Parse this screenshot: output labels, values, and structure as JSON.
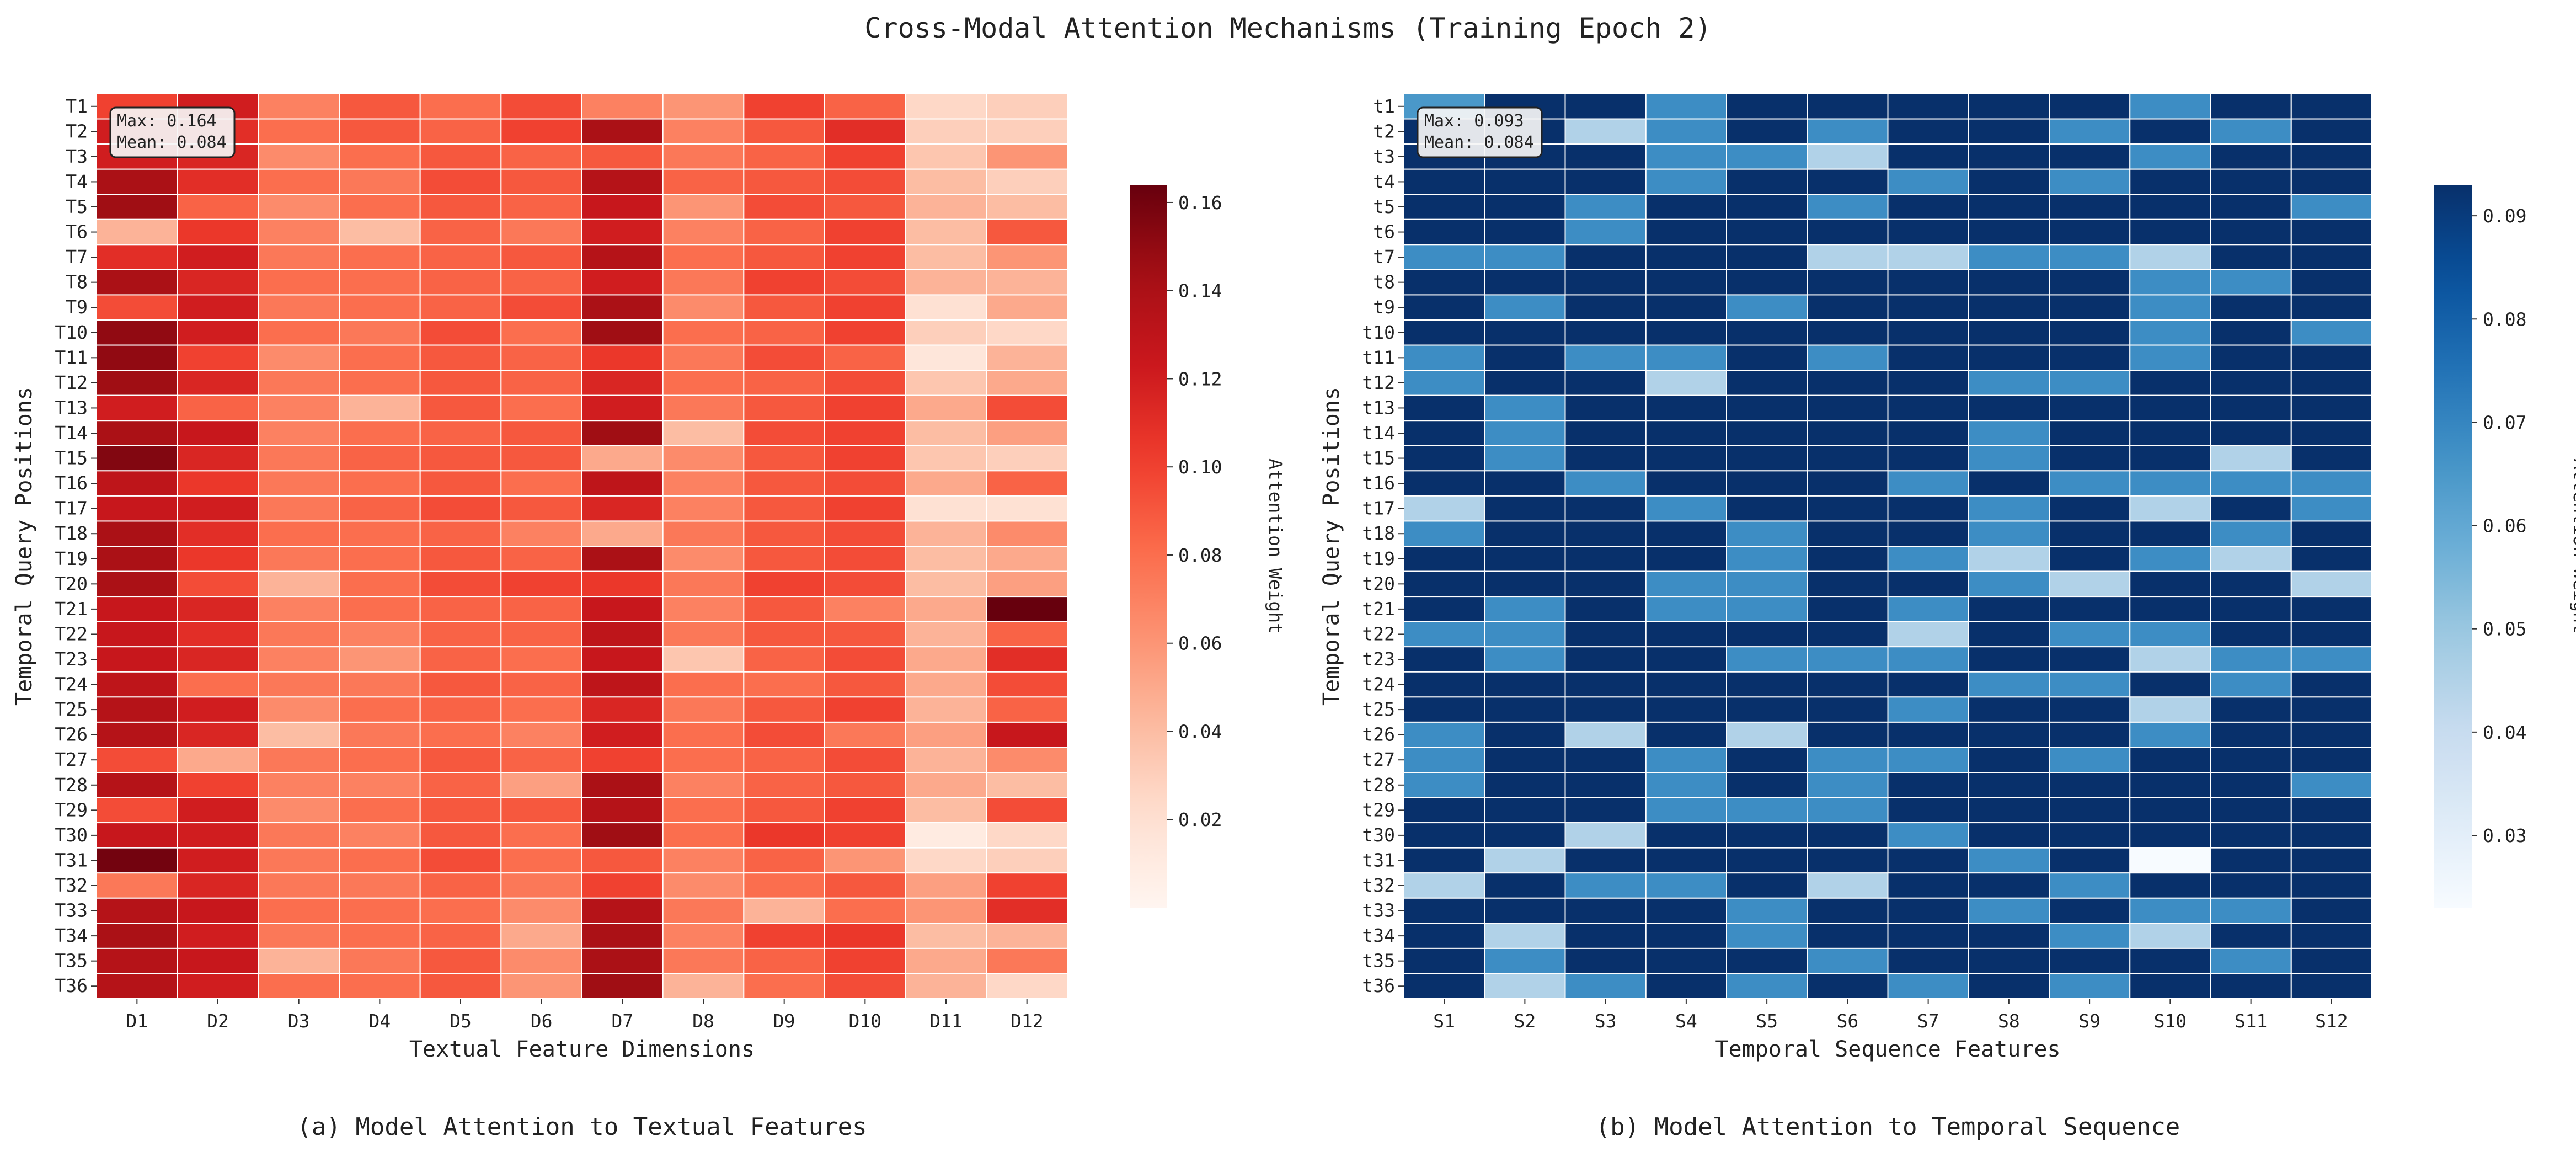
{
  "title": "Cross-Modal Attention Mechanisms (Training Epoch 2)",
  "chart_data": [
    {
      "type": "heatmap",
      "caption": "(a) Model Attention to Textual Features",
      "xlabel": "Textual Feature Dimensions",
      "ylabel": "Temporal Query Positions",
      "colorbar_label": "Attention Weight",
      "colormap": "Reds",
      "colorbar_ticks": [
        "0.02",
        "0.04",
        "0.06",
        "0.08",
        "0.10",
        "0.12",
        "0.14",
        "0.16"
      ],
      "vmin": 0.0,
      "vmax": 0.164,
      "stats": [
        "Max: 0.164",
        "Mean: 0.084"
      ],
      "x_labels": [
        "D1",
        "D2",
        "D3",
        "D4",
        "D5",
        "D6",
        "D7",
        "D8",
        "D9",
        "D10",
        "D11",
        "D12"
      ],
      "y_labels": [
        "T1",
        "T2",
        "T3",
        "T4",
        "T5",
        "T6",
        "T7",
        "T8",
        "T9",
        "T10",
        "T11",
        "T12",
        "T13",
        "T14",
        "T15",
        "T16",
        "T17",
        "T18",
        "T19",
        "T20",
        "T21",
        "T22",
        "T23",
        "T24",
        "T25",
        "T26",
        "T27",
        "T28",
        "T29",
        "T30",
        "T31",
        "T32",
        "T33",
        "T34",
        "T35",
        "T36"
      ],
      "values": [
        [
          0.1,
          0.12,
          0.07,
          0.09,
          0.08,
          0.095,
          0.07,
          0.06,
          0.1,
          0.085,
          0.025,
          0.03
        ],
        [
          0.12,
          0.11,
          0.08,
          0.09,
          0.085,
          0.1,
          0.14,
          0.07,
          0.09,
          0.11,
          0.03,
          0.03
        ],
        [
          0.12,
          0.115,
          0.065,
          0.08,
          0.09,
          0.085,
          0.09,
          0.075,
          0.085,
          0.1,
          0.035,
          0.06
        ],
        [
          0.14,
          0.11,
          0.08,
          0.075,
          0.095,
          0.09,
          0.135,
          0.085,
          0.09,
          0.095,
          0.04,
          0.03
        ],
        [
          0.145,
          0.085,
          0.065,
          0.08,
          0.09,
          0.085,
          0.125,
          0.06,
          0.095,
          0.09,
          0.045,
          0.04
        ],
        [
          0.045,
          0.105,
          0.07,
          0.04,
          0.085,
          0.075,
          0.12,
          0.07,
          0.085,
          0.1,
          0.04,
          0.09
        ],
        [
          0.11,
          0.12,
          0.075,
          0.08,
          0.085,
          0.09,
          0.135,
          0.08,
          0.09,
          0.1,
          0.04,
          0.06
        ],
        [
          0.14,
          0.115,
          0.08,
          0.08,
          0.085,
          0.085,
          0.12,
          0.075,
          0.1,
          0.095,
          0.045,
          0.045
        ],
        [
          0.095,
          0.12,
          0.075,
          0.08,
          0.085,
          0.095,
          0.14,
          0.065,
          0.09,
          0.1,
          0.02,
          0.05
        ],
        [
          0.15,
          0.12,
          0.08,
          0.075,
          0.095,
          0.08,
          0.145,
          0.08,
          0.085,
          0.1,
          0.03,
          0.025
        ],
        [
          0.15,
          0.1,
          0.065,
          0.08,
          0.09,
          0.085,
          0.105,
          0.075,
          0.095,
          0.085,
          0.015,
          0.045
        ],
        [
          0.145,
          0.115,
          0.075,
          0.08,
          0.09,
          0.085,
          0.115,
          0.08,
          0.085,
          0.095,
          0.035,
          0.05
        ],
        [
          0.12,
          0.085,
          0.07,
          0.045,
          0.09,
          0.08,
          0.12,
          0.075,
          0.09,
          0.1,
          0.05,
          0.095
        ],
        [
          0.14,
          0.125,
          0.07,
          0.08,
          0.085,
          0.09,
          0.145,
          0.04,
          0.095,
          0.1,
          0.04,
          0.055
        ],
        [
          0.155,
          0.115,
          0.075,
          0.085,
          0.09,
          0.09,
          0.05,
          0.065,
          0.09,
          0.1,
          0.035,
          0.03
        ],
        [
          0.13,
          0.105,
          0.075,
          0.08,
          0.09,
          0.08,
          0.13,
          0.07,
          0.09,
          0.095,
          0.05,
          0.085
        ],
        [
          0.125,
          0.12,
          0.075,
          0.085,
          0.095,
          0.09,
          0.115,
          0.07,
          0.09,
          0.1,
          0.02,
          0.02
        ],
        [
          0.14,
          0.11,
          0.08,
          0.08,
          0.085,
          0.07,
          0.05,
          0.075,
          0.09,
          0.095,
          0.045,
          0.065
        ],
        [
          0.14,
          0.105,
          0.075,
          0.08,
          0.09,
          0.085,
          0.14,
          0.065,
          0.09,
          0.095,
          0.04,
          0.05
        ],
        [
          0.14,
          0.095,
          0.045,
          0.08,
          0.095,
          0.1,
          0.105,
          0.075,
          0.1,
          0.095,
          0.04,
          0.055
        ],
        [
          0.125,
          0.115,
          0.07,
          0.08,
          0.085,
          0.085,
          0.125,
          0.07,
          0.09,
          0.07,
          0.05,
          0.164
        ],
        [
          0.125,
          0.11,
          0.075,
          0.07,
          0.085,
          0.085,
          0.13,
          0.075,
          0.09,
          0.09,
          0.045,
          0.085
        ],
        [
          0.125,
          0.115,
          0.07,
          0.06,
          0.085,
          0.08,
          0.125,
          0.035,
          0.085,
          0.095,
          0.05,
          0.11
        ],
        [
          0.13,
          0.08,
          0.075,
          0.075,
          0.09,
          0.085,
          0.13,
          0.08,
          0.08,
          0.09,
          0.05,
          0.095
        ],
        [
          0.135,
          0.12,
          0.065,
          0.08,
          0.085,
          0.08,
          0.115,
          0.075,
          0.09,
          0.1,
          0.045,
          0.085
        ],
        [
          0.135,
          0.115,
          0.04,
          0.075,
          0.08,
          0.07,
          0.12,
          0.08,
          0.095,
          0.075,
          0.055,
          0.125
        ],
        [
          0.095,
          0.05,
          0.075,
          0.08,
          0.09,
          0.085,
          0.1,
          0.08,
          0.085,
          0.095,
          0.045,
          0.065
        ],
        [
          0.135,
          0.1,
          0.07,
          0.07,
          0.085,
          0.055,
          0.14,
          0.07,
          0.085,
          0.09,
          0.05,
          0.04
        ],
        [
          0.095,
          0.12,
          0.065,
          0.08,
          0.09,
          0.09,
          0.135,
          0.08,
          0.09,
          0.1,
          0.04,
          0.095
        ],
        [
          0.125,
          0.12,
          0.075,
          0.07,
          0.09,
          0.08,
          0.145,
          0.08,
          0.105,
          0.1,
          0.01,
          0.025
        ],
        [
          0.16,
          0.12,
          0.075,
          0.08,
          0.095,
          0.08,
          0.09,
          0.07,
          0.085,
          0.06,
          0.025,
          0.03
        ],
        [
          0.075,
          0.115,
          0.075,
          0.075,
          0.085,
          0.075,
          0.1,
          0.065,
          0.08,
          0.09,
          0.055,
          0.1
        ],
        [
          0.135,
          0.125,
          0.08,
          0.08,
          0.08,
          0.065,
          0.135,
          0.075,
          0.045,
          0.08,
          0.06,
          0.11
        ],
        [
          0.14,
          0.12,
          0.075,
          0.08,
          0.085,
          0.05,
          0.14,
          0.07,
          0.1,
          0.105,
          0.04,
          0.045
        ],
        [
          0.135,
          0.125,
          0.045,
          0.075,
          0.09,
          0.065,
          0.14,
          0.075,
          0.085,
          0.1,
          0.05,
          0.075
        ],
        [
          0.135,
          0.12,
          0.08,
          0.08,
          0.09,
          0.06,
          0.145,
          0.045,
          0.08,
          0.095,
          0.045,
          0.025
        ]
      ]
    },
    {
      "type": "heatmap",
      "caption": "(b) Model Attention to Temporal Sequence",
      "xlabel": "Temporal Sequence Features",
      "ylabel": "Temporal Query Positions",
      "colorbar_label": "Attention Weight",
      "colormap": "Blues",
      "colorbar_ticks": [
        "0.03",
        "0.04",
        "0.05",
        "0.06",
        "0.07",
        "0.08",
        "0.09"
      ],
      "vmin": 0.023,
      "vmax": 0.093,
      "stats": [
        "Max: 0.093",
        "Mean: 0.084"
      ],
      "x_labels": [
        "S1",
        "S2",
        "S3",
        "S4",
        "S5",
        "S6",
        "S7",
        "S8",
        "S9",
        "S10",
        "S11",
        "S12"
      ],
      "y_labels": [
        "t1",
        "t2",
        "t3",
        "t4",
        "t5",
        "t6",
        "t7",
        "t8",
        "t9",
        "t10",
        "t11",
        "t12",
        "t13",
        "t14",
        "t15",
        "t16",
        "t17",
        "t18",
        "t19",
        "t20",
        "t21",
        "t22",
        "t23",
        "t24",
        "t25",
        "t26",
        "t27",
        "t28",
        "t29",
        "t30",
        "t31",
        "t32",
        "t33",
        "t34",
        "t35",
        "t36"
      ],
      "values": [
        [
          0.065,
          0.093,
          0.093,
          0.068,
          0.093,
          0.093,
          0.093,
          0.093,
          0.093,
          0.068,
          0.093,
          0.093
        ],
        [
          0.093,
          0.093,
          0.045,
          0.068,
          0.093,
          0.068,
          0.093,
          0.093,
          0.068,
          0.093,
          0.068,
          0.093
        ],
        [
          0.093,
          0.093,
          0.093,
          0.068,
          0.068,
          0.045,
          0.093,
          0.093,
          0.093,
          0.068,
          0.093,
          0.093
        ],
        [
          0.093,
          0.093,
          0.093,
          0.068,
          0.093,
          0.093,
          0.068,
          0.093,
          0.068,
          0.093,
          0.093,
          0.093
        ],
        [
          0.093,
          0.093,
          0.068,
          0.093,
          0.093,
          0.068,
          0.093,
          0.093,
          0.093,
          0.093,
          0.093,
          0.068
        ],
        [
          0.093,
          0.093,
          0.068,
          0.093,
          0.093,
          0.093,
          0.093,
          0.093,
          0.093,
          0.093,
          0.093,
          0.093
        ],
        [
          0.068,
          0.068,
          0.093,
          0.093,
          0.093,
          0.045,
          0.045,
          0.068,
          0.068,
          0.045,
          0.093,
          0.093
        ],
        [
          0.093,
          0.093,
          0.093,
          0.093,
          0.093,
          0.093,
          0.093,
          0.093,
          0.093,
          0.068,
          0.068,
          0.093
        ],
        [
          0.093,
          0.068,
          0.093,
          0.093,
          0.068,
          0.093,
          0.093,
          0.093,
          0.093,
          0.068,
          0.093,
          0.093
        ],
        [
          0.093,
          0.093,
          0.093,
          0.093,
          0.093,
          0.093,
          0.093,
          0.093,
          0.093,
          0.068,
          0.093,
          0.068
        ],
        [
          0.068,
          0.093,
          0.068,
          0.068,
          0.093,
          0.068,
          0.093,
          0.093,
          0.093,
          0.068,
          0.093,
          0.093
        ],
        [
          0.068,
          0.093,
          0.093,
          0.045,
          0.093,
          0.093,
          0.093,
          0.068,
          0.068,
          0.093,
          0.093,
          0.093
        ],
        [
          0.093,
          0.068,
          0.093,
          0.093,
          0.093,
          0.093,
          0.093,
          0.093,
          0.093,
          0.093,
          0.093,
          0.093
        ],
        [
          0.093,
          0.068,
          0.093,
          0.093,
          0.093,
          0.093,
          0.093,
          0.068,
          0.093,
          0.093,
          0.093,
          0.093
        ],
        [
          0.093,
          0.068,
          0.093,
          0.093,
          0.093,
          0.093,
          0.093,
          0.068,
          0.093,
          0.093,
          0.045,
          0.093
        ],
        [
          0.093,
          0.093,
          0.068,
          0.093,
          0.093,
          0.093,
          0.068,
          0.093,
          0.068,
          0.068,
          0.068,
          0.068
        ],
        [
          0.045,
          0.093,
          0.093,
          0.068,
          0.093,
          0.093,
          0.093,
          0.068,
          0.093,
          0.045,
          0.093,
          0.068
        ],
        [
          0.068,
          0.093,
          0.093,
          0.093,
          0.068,
          0.093,
          0.093,
          0.068,
          0.093,
          0.093,
          0.068,
          0.093
        ],
        [
          0.093,
          0.093,
          0.093,
          0.093,
          0.068,
          0.093,
          0.068,
          0.045,
          0.093,
          0.068,
          0.045,
          0.093
        ],
        [
          0.093,
          0.093,
          0.093,
          0.068,
          0.068,
          0.093,
          0.093,
          0.068,
          0.045,
          0.093,
          0.093,
          0.045
        ],
        [
          0.093,
          0.068,
          0.093,
          0.068,
          0.068,
          0.093,
          0.068,
          0.093,
          0.093,
          0.093,
          0.093,
          0.093
        ],
        [
          0.068,
          0.068,
          0.093,
          0.093,
          0.093,
          0.093,
          0.045,
          0.093,
          0.068,
          0.068,
          0.093,
          0.093
        ],
        [
          0.093,
          0.068,
          0.093,
          0.093,
          0.068,
          0.068,
          0.068,
          0.093,
          0.093,
          0.045,
          0.068,
          0.068
        ],
        [
          0.093,
          0.093,
          0.093,
          0.093,
          0.093,
          0.093,
          0.093,
          0.068,
          0.068,
          0.093,
          0.068,
          0.093
        ],
        [
          0.093,
          0.093,
          0.093,
          0.093,
          0.093,
          0.093,
          0.068,
          0.093,
          0.093,
          0.045,
          0.093,
          0.093
        ],
        [
          0.068,
          0.093,
          0.045,
          0.093,
          0.045,
          0.093,
          0.093,
          0.093,
          0.093,
          0.068,
          0.093,
          0.093
        ],
        [
          0.068,
          0.093,
          0.093,
          0.068,
          0.093,
          0.068,
          0.068,
          0.093,
          0.068,
          0.093,
          0.093,
          0.093
        ],
        [
          0.068,
          0.093,
          0.093,
          0.068,
          0.093,
          0.068,
          0.093,
          0.093,
          0.093,
          0.093,
          0.093,
          0.068
        ],
        [
          0.093,
          0.093,
          0.093,
          0.068,
          0.068,
          0.068,
          0.093,
          0.093,
          0.093,
          0.093,
          0.093,
          0.093
        ],
        [
          0.093,
          0.093,
          0.045,
          0.093,
          0.093,
          0.093,
          0.068,
          0.093,
          0.093,
          0.093,
          0.093,
          0.093
        ],
        [
          0.093,
          0.045,
          0.093,
          0.093,
          0.093,
          0.093,
          0.093,
          0.068,
          0.093,
          0.023,
          0.093,
          0.093
        ],
        [
          0.045,
          0.093,
          0.068,
          0.068,
          0.093,
          0.045,
          0.093,
          0.093,
          0.068,
          0.093,
          0.093,
          0.093
        ],
        [
          0.093,
          0.093,
          0.093,
          0.093,
          0.068,
          0.093,
          0.093,
          0.068,
          0.093,
          0.068,
          0.068,
          0.093
        ],
        [
          0.093,
          0.045,
          0.093,
          0.093,
          0.068,
          0.093,
          0.093,
          0.093,
          0.068,
          0.045,
          0.093,
          0.093
        ],
        [
          0.093,
          0.068,
          0.093,
          0.093,
          0.093,
          0.068,
          0.093,
          0.093,
          0.093,
          0.093,
          0.068,
          0.093
        ],
        [
          0.093,
          0.045,
          0.068,
          0.093,
          0.068,
          0.093,
          0.068,
          0.093,
          0.068,
          0.093,
          0.093,
          0.093
        ]
      ]
    }
  ]
}
